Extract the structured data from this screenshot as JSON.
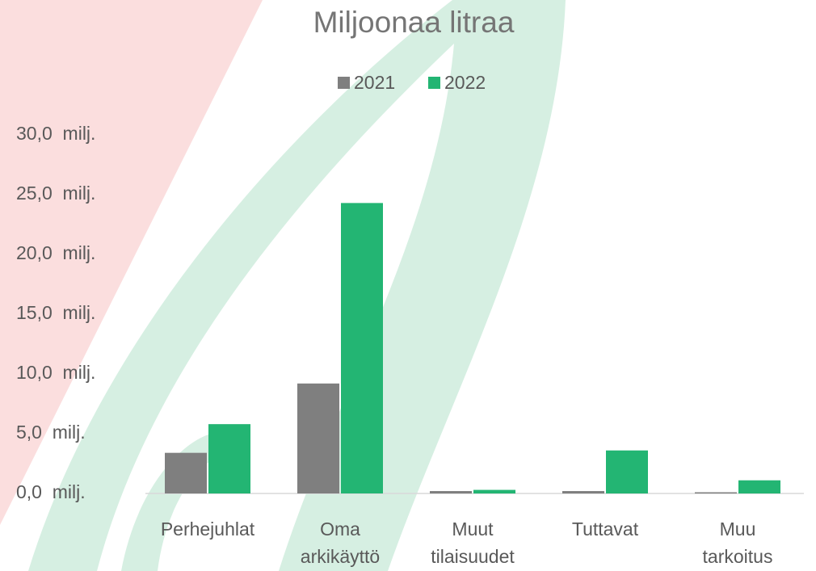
{
  "chart_data": {
    "type": "bar",
    "title": "Miljoonaa litraa",
    "categories": [
      "Perhejuhlat",
      "Oma arkikäyttö",
      "Muut tilaisuudet",
      "Tuttavat",
      "Muu tarkoitus"
    ],
    "series": [
      {
        "name": "2021",
        "color": "#7f7f7f",
        "values": [
          3.4,
          9.2,
          0.2,
          0.2,
          0.1
        ]
      },
      {
        "name": "2022",
        "color": "#23b573",
        "values": [
          5.8,
          24.3,
          0.3,
          3.6,
          1.1
        ]
      }
    ],
    "ylim": [
      0,
      30
    ],
    "yticks": [
      {
        "value": 0,
        "label": "0,0  milj."
      },
      {
        "value": 5,
        "label": "5,0  milj."
      },
      {
        "value": 10,
        "label": "10,0  milj."
      },
      {
        "value": 15,
        "label": "15,0  milj."
      },
      {
        "value": 20,
        "label": "20,0  milj."
      },
      {
        "value": 25,
        "label": "25,0  milj."
      },
      {
        "value": 30,
        "label": "30,0  milj."
      }
    ],
    "grid": false
  }
}
